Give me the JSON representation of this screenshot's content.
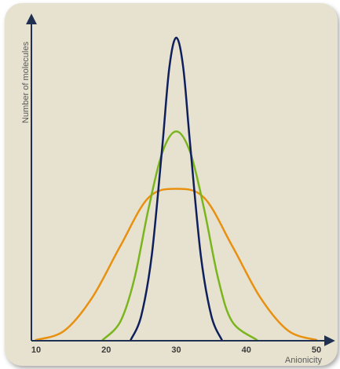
{
  "chart_data": {
    "type": "line",
    "title": "",
    "xlabel": "Anionicity",
    "ylabel": "Number of molecules",
    "xlim": [
      10,
      50
    ],
    "ylim": [
      0,
      1
    ],
    "x_ticks": [
      "10",
      "20",
      "30",
      "40",
      "50"
    ],
    "grid": false,
    "legend": "none",
    "series": [
      {
        "color": "#e8900f",
        "x": [
          10,
          14,
          18,
          22,
          26,
          30,
          34,
          38,
          42,
          46,
          50
        ],
        "y": [
          0.0,
          0.03,
          0.14,
          0.31,
          0.47,
          0.5,
          0.47,
          0.31,
          0.14,
          0.03,
          0.0
        ]
      },
      {
        "color": "#7ab51d",
        "x": [
          19.5,
          22,
          24,
          26,
          28,
          30,
          32,
          34,
          36,
          38,
          41.5
        ],
        "y": [
          0.0,
          0.06,
          0.2,
          0.43,
          0.62,
          0.69,
          0.62,
          0.43,
          0.2,
          0.06,
          0.0
        ]
      },
      {
        "color": "#0f1f5c",
        "x": [
          23.5,
          25,
          26.5,
          28,
          29,
          30,
          31,
          32,
          33.5,
          35,
          36.5
        ],
        "y": [
          0.0,
          0.08,
          0.28,
          0.64,
          0.9,
          1.0,
          0.9,
          0.64,
          0.28,
          0.08,
          0.0
        ]
      }
    ]
  }
}
